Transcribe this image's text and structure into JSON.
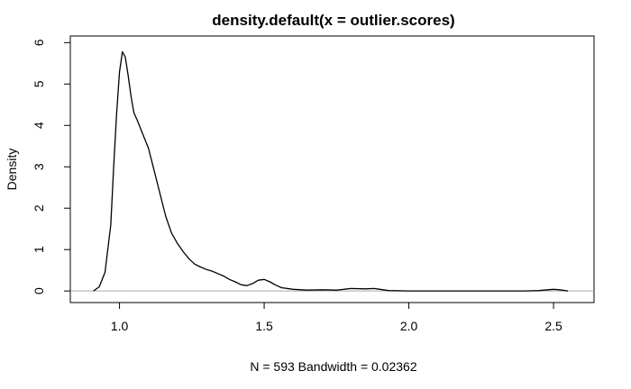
{
  "chart_data": {
    "type": "line",
    "title": "density.default(x = outlier.scores)",
    "xlabel": "N = 593   Bandwidth = 0.02362",
    "ylabel": "Density",
    "xlim": [
      0.83,
      2.64
    ],
    "ylim": [
      -0.28,
      6.16
    ],
    "x_ticks": [
      1.0,
      1.5,
      2.0,
      2.5
    ],
    "x_tick_labels": [
      "1.0",
      "1.5",
      "2.0",
      "2.5"
    ],
    "y_ticks": [
      0,
      1,
      2,
      3,
      4,
      5,
      6
    ],
    "y_tick_labels": [
      "0",
      "1",
      "2",
      "3",
      "4",
      "5",
      "6"
    ],
    "zero_line": 0,
    "grid": false,
    "series": [
      {
        "x": [
          0.91,
          0.93,
          0.95,
          0.97,
          0.98,
          0.99,
          1.0,
          1.01,
          1.02,
          1.03,
          1.04,
          1.05,
          1.06,
          1.08,
          1.1,
          1.12,
          1.14,
          1.16,
          1.18,
          1.2,
          1.22,
          1.24,
          1.26,
          1.28,
          1.3,
          1.32,
          1.34,
          1.36,
          1.38,
          1.4,
          1.42,
          1.44,
          1.46,
          1.48,
          1.5,
          1.52,
          1.54,
          1.56,
          1.6,
          1.65,
          1.7,
          1.75,
          1.8,
          1.85,
          1.88,
          1.9,
          1.93,
          2.0,
          2.1,
          2.2,
          2.3,
          2.4,
          2.45,
          2.48,
          2.5,
          2.52,
          2.55
        ],
        "y": [
          0.0,
          0.1,
          0.45,
          1.6,
          3.0,
          4.3,
          5.3,
          5.78,
          5.65,
          5.2,
          4.7,
          4.3,
          4.15,
          3.8,
          3.45,
          2.9,
          2.35,
          1.8,
          1.4,
          1.15,
          0.95,
          0.78,
          0.65,
          0.58,
          0.52,
          0.48,
          0.42,
          0.36,
          0.28,
          0.22,
          0.15,
          0.13,
          0.18,
          0.26,
          0.28,
          0.22,
          0.14,
          0.08,
          0.04,
          0.02,
          0.03,
          0.02,
          0.06,
          0.05,
          0.06,
          0.04,
          0.01,
          0.0,
          0.0,
          0.0,
          0.0,
          0.0,
          0.01,
          0.03,
          0.04,
          0.03,
          0.0
        ]
      }
    ]
  }
}
